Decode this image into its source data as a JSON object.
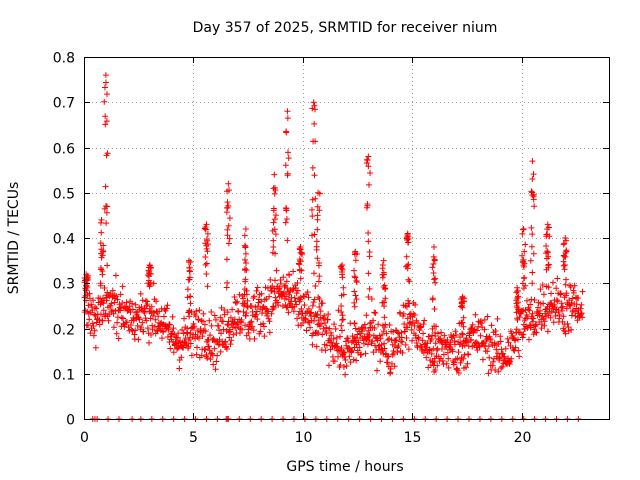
{
  "chart_data": {
    "type": "scatter",
    "title": "Day 357 of 2025, SRMTID for receiver nium",
    "xlabel": "GPS time / hours",
    "ylabel": "SRMTID / TECUs",
    "xlim": [
      0,
      24
    ],
    "ylim": [
      0,
      0.8
    ],
    "xticks": [
      0,
      5,
      10,
      15,
      20
    ],
    "yticks": [
      0,
      0.1,
      0.2,
      0.3,
      0.4,
      0.5,
      0.6,
      0.7,
      0.8
    ],
    "xtick_labels": [
      "0",
      "5",
      "10",
      "15",
      "20"
    ],
    "ytick_labels": [
      "0",
      "0.1",
      "0.2",
      "0.3",
      "0.4",
      "0.5",
      "0.6",
      "0.7",
      "0.8"
    ],
    "grid": true,
    "marker": "plus",
    "series_color": "#ff0000",
    "profile_x": [
      0,
      0.5,
      1,
      1.5,
      2,
      2.5,
      3,
      3.5,
      4,
      4.5,
      5,
      5.5,
      6,
      6.5,
      7,
      7.5,
      8,
      8.5,
      9,
      9.5,
      10,
      10.5,
      11,
      11.5,
      12,
      12.5,
      13,
      13.5,
      14,
      14.5,
      15,
      15.5,
      16,
      16.5,
      17,
      17.5,
      18,
      18.5,
      19,
      19.5,
      20,
      20.5,
      21,
      21.5,
      22,
      22.5,
      22.8
    ],
    "profile_y": [
      0.25,
      0.22,
      0.26,
      0.24,
      0.23,
      0.22,
      0.24,
      0.22,
      0.18,
      0.17,
      0.19,
      0.2,
      0.17,
      0.2,
      0.24,
      0.22,
      0.24,
      0.26,
      0.28,
      0.26,
      0.24,
      0.21,
      0.2,
      0.17,
      0.14,
      0.17,
      0.19,
      0.18,
      0.15,
      0.2,
      0.22,
      0.17,
      0.14,
      0.16,
      0.15,
      0.17,
      0.18,
      0.17,
      0.14,
      0.15,
      0.21,
      0.22,
      0.25,
      0.26,
      0.24,
      0.25,
      0.22
    ],
    "spread": 0.055,
    "spikes": [
      {
        "x": 0.1,
        "peak": 0.32
      },
      {
        "x": 0.8,
        "peak": 0.44
      },
      {
        "x": 1.0,
        "peak": 0.76
      },
      {
        "x": 3.0,
        "peak": 0.34
      },
      {
        "x": 4.8,
        "peak": 0.35
      },
      {
        "x": 5.6,
        "peak": 0.43
      },
      {
        "x": 6.6,
        "peak": 0.52
      },
      {
        "x": 7.4,
        "peak": 0.42
      },
      {
        "x": 8.7,
        "peak": 0.54
      },
      {
        "x": 9.3,
        "peak": 0.68
      },
      {
        "x": 9.9,
        "peak": 0.38
      },
      {
        "x": 10.5,
        "peak": 0.7
      },
      {
        "x": 10.7,
        "peak": 0.5
      },
      {
        "x": 11.8,
        "peak": 0.34
      },
      {
        "x": 12.4,
        "peak": 0.37
      },
      {
        "x": 13.0,
        "peak": 0.58
      },
      {
        "x": 13.7,
        "peak": 0.35
      },
      {
        "x": 14.8,
        "peak": 0.41
      },
      {
        "x": 16.0,
        "peak": 0.38
      },
      {
        "x": 17.3,
        "peak": 0.27
      },
      {
        "x": 19.8,
        "peak": 0.29
      },
      {
        "x": 20.1,
        "peak": 0.42
      },
      {
        "x": 20.5,
        "peak": 0.57
      },
      {
        "x": 21.2,
        "peak": 0.43
      },
      {
        "x": 22.0,
        "peak": 0.4
      }
    ],
    "zero_points_x": [
      0.4,
      0.5,
      0.6,
      1.1,
      1.6,
      2.2,
      2.6,
      3.1,
      3.6,
      4.1,
      4.6,
      5.1,
      5.6,
      6.1,
      6.5,
      6.55,
      6.6,
      7.1,
      7.6,
      8.1,
      8.6,
      9.1,
      9.6,
      10.1,
      10.6,
      11.1,
      11.6,
      12.1,
      12.6,
      13.1,
      13.6,
      14.1,
      14.6,
      15.1,
      15.6,
      16.1,
      16.6,
      17.1,
      17.6,
      18.1,
      18.6,
      19.1,
      19.6,
      20.1,
      20.6,
      21.1,
      21.6,
      22.1,
      22.6
    ]
  }
}
